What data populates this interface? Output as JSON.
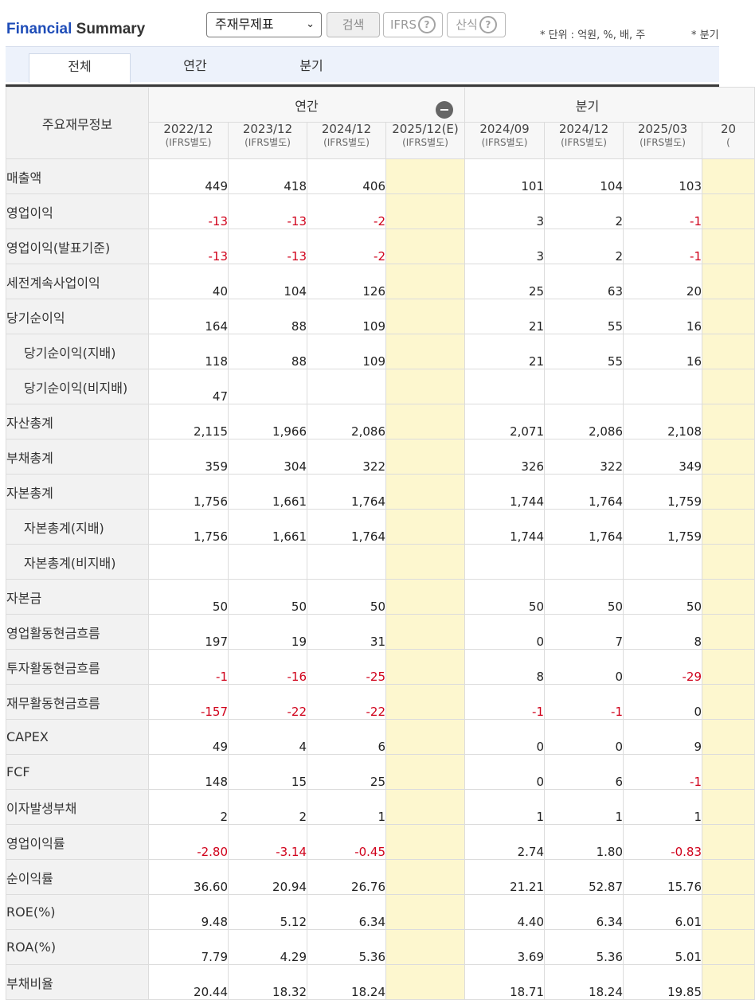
{
  "header": {
    "title_part1": "Financial",
    "title_part2": "Summary",
    "statement_select": "주재무제표",
    "search_label": "검색",
    "ifrs_label": "IFRS",
    "calc_label": "산식",
    "help_glyph": "?",
    "unit_note": "* 단위 : 억원, %, 배, 주",
    "unit_note2": "* 분기"
  },
  "tabs": {
    "all": "전체",
    "annual": "연간",
    "quarter": "분기"
  },
  "table": {
    "row_header_title": "주요재무정보",
    "group_annual": "연간",
    "group_quarter": "분기",
    "collapse_glyph": "−",
    "columns": [
      {
        "period": "2022/12",
        "basis": "(IFRS별도)"
      },
      {
        "period": "2023/12",
        "basis": "(IFRS별도)"
      },
      {
        "period": "2024/12",
        "basis": "(IFRS별도)"
      },
      {
        "period": "2025/12(E)",
        "basis": "(IFRS별도)"
      },
      {
        "period": "2024/09",
        "basis": "(IFRS별도)"
      },
      {
        "period": "2024/12",
        "basis": "(IFRS별도)"
      },
      {
        "period": "2025/03",
        "basis": "(IFRS별도)"
      },
      {
        "period": "20",
        "basis": "("
      }
    ],
    "rows": [
      {
        "label": "매출액",
        "indent": false,
        "values": [
          "449",
          "418",
          "406",
          "",
          "101",
          "104",
          "103"
        ]
      },
      {
        "label": "영업이익",
        "indent": false,
        "values": [
          "-13",
          "-13",
          "-2",
          "",
          "3",
          "2",
          "-1"
        ]
      },
      {
        "label": "영업이익(발표기준)",
        "indent": false,
        "values": [
          "-13",
          "-13",
          "-2",
          "",
          "3",
          "2",
          "-1"
        ]
      },
      {
        "label": "세전계속사업이익",
        "indent": false,
        "values": [
          "40",
          "104",
          "126",
          "",
          "25",
          "63",
          "20"
        ]
      },
      {
        "label": "당기순이익",
        "indent": false,
        "values": [
          "164",
          "88",
          "109",
          "",
          "21",
          "55",
          "16"
        ]
      },
      {
        "label": "당기순이익(지배)",
        "indent": true,
        "values": [
          "118",
          "88",
          "109",
          "",
          "21",
          "55",
          "16"
        ]
      },
      {
        "label": "당기순이익(비지배)",
        "indent": true,
        "values": [
          "47",
          "",
          "",
          "",
          "",
          "",
          ""
        ]
      },
      {
        "label": "자산총계",
        "indent": false,
        "values": [
          "2,115",
          "1,966",
          "2,086",
          "",
          "2,071",
          "2,086",
          "2,108"
        ]
      },
      {
        "label": "부채총계",
        "indent": false,
        "values": [
          "359",
          "304",
          "322",
          "",
          "326",
          "322",
          "349"
        ]
      },
      {
        "label": "자본총계",
        "indent": false,
        "values": [
          "1,756",
          "1,661",
          "1,764",
          "",
          "1,744",
          "1,764",
          "1,759"
        ]
      },
      {
        "label": "자본총계(지배)",
        "indent": true,
        "values": [
          "1,756",
          "1,661",
          "1,764",
          "",
          "1,744",
          "1,764",
          "1,759"
        ]
      },
      {
        "label": "자본총계(비지배)",
        "indent": true,
        "values": [
          "",
          "",
          "",
          "",
          "",
          "",
          ""
        ]
      },
      {
        "label": "자본금",
        "indent": false,
        "values": [
          "50",
          "50",
          "50",
          "",
          "50",
          "50",
          "50"
        ]
      },
      {
        "label": "영업활동현금흐름",
        "indent": false,
        "values": [
          "197",
          "19",
          "31",
          "",
          "0",
          "7",
          "8"
        ]
      },
      {
        "label": "투자활동현금흐름",
        "indent": false,
        "values": [
          "-1",
          "-16",
          "-25",
          "",
          "8",
          "0",
          "-29"
        ]
      },
      {
        "label": "재무활동현금흐름",
        "indent": false,
        "values": [
          "-157",
          "-22",
          "-22",
          "",
          "-1",
          "-1",
          "0"
        ]
      },
      {
        "label": "CAPEX",
        "indent": false,
        "values": [
          "49",
          "4",
          "6",
          "",
          "0",
          "0",
          "9"
        ]
      },
      {
        "label": "FCF",
        "indent": false,
        "values": [
          "148",
          "15",
          "25",
          "",
          "0",
          "6",
          "-1"
        ]
      },
      {
        "label": "이자발생부채",
        "indent": false,
        "values": [
          "2",
          "2",
          "1",
          "",
          "1",
          "1",
          "1"
        ]
      },
      {
        "label": "영업이익률",
        "indent": false,
        "values": [
          "-2.80",
          "-3.14",
          "-0.45",
          "",
          "2.74",
          "1.80",
          "-0.83"
        ]
      },
      {
        "label": "순이익률",
        "indent": false,
        "values": [
          "36.60",
          "20.94",
          "26.76",
          "",
          "21.21",
          "52.87",
          "15.76"
        ]
      },
      {
        "label": "ROE(%)",
        "indent": false,
        "values": [
          "9.48",
          "5.12",
          "6.34",
          "",
          "4.40",
          "6.34",
          "6.01"
        ]
      },
      {
        "label": "ROA(%)",
        "indent": false,
        "values": [
          "7.79",
          "4.29",
          "5.36",
          "",
          "3.69",
          "5.36",
          "5.01"
        ]
      },
      {
        "label": "부채비율",
        "indent": false,
        "values": [
          "20.44",
          "18.32",
          "18.24",
          "",
          "18.71",
          "18.24",
          "19.85"
        ]
      }
    ]
  },
  "colors": {
    "brand_blue": "#1f4db8",
    "negative_red": "#d0021b",
    "estimate_column_bg": "#fdf7cf",
    "tab_bar_bg": "#edf2fb"
  }
}
